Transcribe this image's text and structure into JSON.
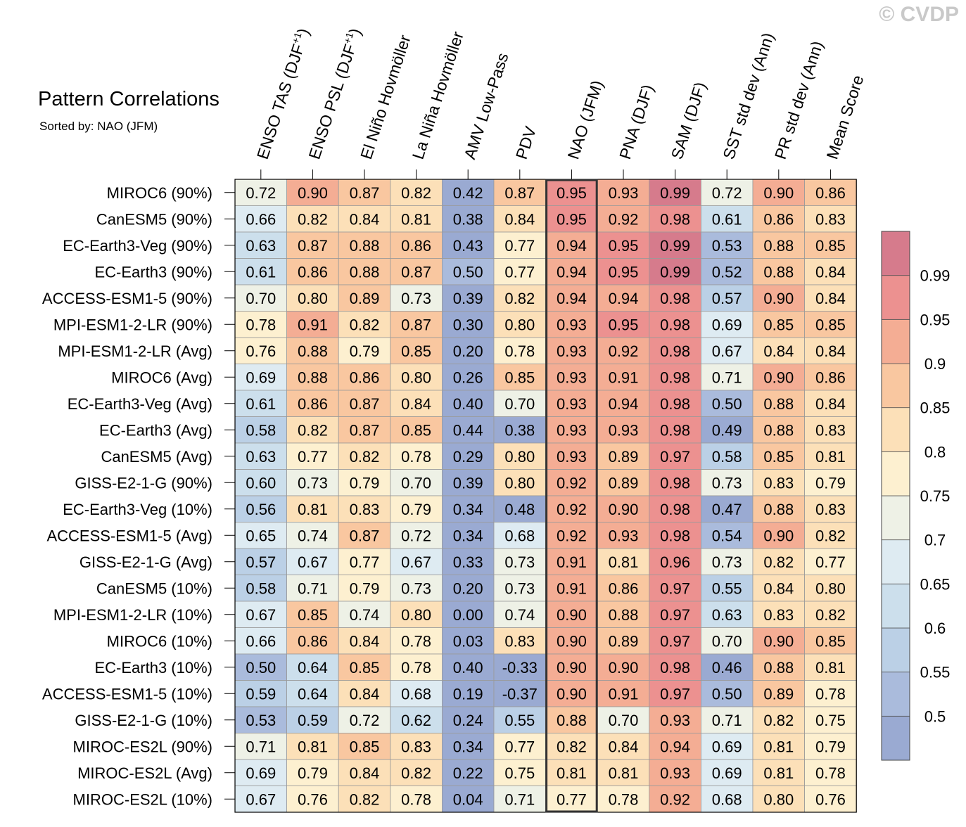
{
  "watermark": "© CVDP",
  "title": "Pattern Correlations",
  "subtitle": "Sorted by: NAO (JFM)",
  "chart_data": {
    "type": "heatmap",
    "columns": [
      {
        "base": "ENSO TAS (DJF",
        "sup": "+1",
        "tail": ")"
      },
      {
        "base": "ENSO PSL (DJF",
        "sup": "+1",
        "tail": ")"
      },
      {
        "base": "El Niño Hovmöller"
      },
      {
        "base": "La Niña Hovmöller"
      },
      {
        "base": "AMV Low-Pass"
      },
      {
        "base": "PDV"
      },
      {
        "base": "NAO (JFM)"
      },
      {
        "base": "PNA (DJF)"
      },
      {
        "base": "SAM (DJF)"
      },
      {
        "base": "SST std dev (Ann)"
      },
      {
        "base": "PR std dev (Ann)"
      },
      {
        "base": "Mean Score"
      }
    ],
    "rows": [
      "MIROC6 (90%)",
      "CanESM5 (90%)",
      "EC-Earth3-Veg (90%)",
      "EC-Earth3 (90%)",
      "ACCESS-ESM1-5 (90%)",
      "MPI-ESM1-2-LR (90%)",
      "MPI-ESM1-2-LR (Avg)",
      "MIROC6 (Avg)",
      "EC-Earth3-Veg (Avg)",
      "EC-Earth3 (Avg)",
      "CanESM5 (Avg)",
      "GISS-E2-1-G (90%)",
      "EC-Earth3-Veg (10%)",
      "ACCESS-ESM1-5 (Avg)",
      "GISS-E2-1-G (Avg)",
      "CanESM5 (10%)",
      "MPI-ESM1-2-LR (10%)",
      "MIROC6 (10%)",
      "EC-Earth3 (10%)",
      "ACCESS-ESM1-5 (10%)",
      "GISS-E2-1-G (10%)",
      "MIROC-ES2L (90%)",
      "MIROC-ES2L (Avg)",
      "MIROC-ES2L (10%)"
    ],
    "values": [
      [
        "0.72",
        "0.90",
        "0.87",
        "0.82",
        "0.42",
        "0.87",
        "0.95",
        "0.93",
        "0.99",
        "0.72",
        "0.90",
        "0.86"
      ],
      [
        "0.66",
        "0.82",
        "0.84",
        "0.81",
        "0.38",
        "0.84",
        "0.95",
        "0.92",
        "0.98",
        "0.61",
        "0.86",
        "0.83"
      ],
      [
        "0.63",
        "0.87",
        "0.88",
        "0.86",
        "0.43",
        "0.77",
        "0.94",
        "0.95",
        "0.99",
        "0.53",
        "0.88",
        "0.85"
      ],
      [
        "0.61",
        "0.86",
        "0.88",
        "0.87",
        "0.50",
        "0.77",
        "0.94",
        "0.95",
        "0.99",
        "0.52",
        "0.88",
        "0.84"
      ],
      [
        "0.70",
        "0.80",
        "0.89",
        "0.73",
        "0.39",
        "0.82",
        "0.94",
        "0.94",
        "0.98",
        "0.57",
        "0.90",
        "0.84"
      ],
      [
        "0.78",
        "0.91",
        "0.82",
        "0.87",
        "0.30",
        "0.80",
        "0.93",
        "0.95",
        "0.98",
        "0.69",
        "0.85",
        "0.85"
      ],
      [
        "0.76",
        "0.88",
        "0.79",
        "0.85",
        "0.20",
        "0.78",
        "0.93",
        "0.92",
        "0.98",
        "0.67",
        "0.84",
        "0.84"
      ],
      [
        "0.69",
        "0.88",
        "0.86",
        "0.80",
        "0.26",
        "0.85",
        "0.93",
        "0.91",
        "0.98",
        "0.71",
        "0.90",
        "0.86"
      ],
      [
        "0.61",
        "0.86",
        "0.87",
        "0.84",
        "0.40",
        "0.70",
        "0.93",
        "0.94",
        "0.98",
        "0.50",
        "0.88",
        "0.84"
      ],
      [
        "0.58",
        "0.82",
        "0.87",
        "0.85",
        "0.44",
        "0.38",
        "0.93",
        "0.93",
        "0.98",
        "0.49",
        "0.88",
        "0.83"
      ],
      [
        "0.63",
        "0.77",
        "0.82",
        "0.78",
        "0.29",
        "0.80",
        "0.93",
        "0.89",
        "0.97",
        "0.58",
        "0.85",
        "0.81"
      ],
      [
        "0.60",
        "0.73",
        "0.79",
        "0.70",
        "0.39",
        "0.80",
        "0.92",
        "0.89",
        "0.98",
        "0.73",
        "0.83",
        "0.79"
      ],
      [
        "0.56",
        "0.81",
        "0.83",
        "0.79",
        "0.34",
        "0.48",
        "0.92",
        "0.90",
        "0.98",
        "0.47",
        "0.88",
        "0.83"
      ],
      [
        "0.65",
        "0.74",
        "0.87",
        "0.72",
        "0.34",
        "0.68",
        "0.92",
        "0.93",
        "0.98",
        "0.54",
        "0.90",
        "0.82"
      ],
      [
        "0.57",
        "0.67",
        "0.77",
        "0.67",
        "0.33",
        "0.73",
        "0.91",
        "0.81",
        "0.96",
        "0.73",
        "0.82",
        "0.77"
      ],
      [
        "0.58",
        "0.71",
        "0.79",
        "0.73",
        "0.20",
        "0.73",
        "0.91",
        "0.86",
        "0.97",
        "0.55",
        "0.84",
        "0.80"
      ],
      [
        "0.67",
        "0.85",
        "0.74",
        "0.80",
        "0.00",
        "0.74",
        "0.90",
        "0.88",
        "0.97",
        "0.63",
        "0.83",
        "0.82"
      ],
      [
        "0.66",
        "0.86",
        "0.84",
        "0.78",
        "0.03",
        "0.83",
        "0.90",
        "0.89",
        "0.97",
        "0.70",
        "0.90",
        "0.85"
      ],
      [
        "0.50",
        "0.64",
        "0.85",
        "0.78",
        "0.40",
        "-0.33",
        "0.90",
        "0.90",
        "0.98",
        "0.46",
        "0.88",
        "0.81"
      ],
      [
        "0.59",
        "0.64",
        "0.84",
        "0.68",
        "0.19",
        "-0.37",
        "0.90",
        "0.91",
        "0.97",
        "0.50",
        "0.89",
        "0.78"
      ],
      [
        "0.53",
        "0.59",
        "0.72",
        "0.62",
        "0.24",
        "0.55",
        "0.88",
        "0.70",
        "0.93",
        "0.71",
        "0.82",
        "0.75"
      ],
      [
        "0.71",
        "0.81",
        "0.85",
        "0.83",
        "0.34",
        "0.77",
        "0.82",
        "0.84",
        "0.94",
        "0.69",
        "0.81",
        "0.79"
      ],
      [
        "0.69",
        "0.79",
        "0.84",
        "0.82",
        "0.22",
        "0.75",
        "0.81",
        "0.81",
        "0.93",
        "0.69",
        "0.81",
        "0.78"
      ],
      [
        "0.67",
        "0.76",
        "0.82",
        "0.78",
        "0.04",
        "0.71",
        "0.77",
        "0.78",
        "0.92",
        "0.68",
        "0.80",
        "0.76"
      ]
    ],
    "highlight_column": 6,
    "colorbar": {
      "levels": [
        0.5,
        0.55,
        0.6,
        0.65,
        0.7,
        0.75,
        0.8,
        0.85,
        0.9,
        0.95,
        0.99
      ],
      "labels": [
        "0.5",
        "0.55",
        "0.6",
        "0.65",
        "0.7",
        "0.75",
        "0.8",
        "0.85",
        "0.9",
        "0.95",
        "0.99"
      ],
      "colors": [
        "#9aaad2",
        "#aabbdc",
        "#bbd0e6",
        "#ccdfec",
        "#deebf2",
        "#eef1e6",
        "#fdf0d0",
        "#fce0b8",
        "#f9c7a0",
        "#f4ad94",
        "#ec9190",
        "#d67b8c"
      ]
    }
  }
}
